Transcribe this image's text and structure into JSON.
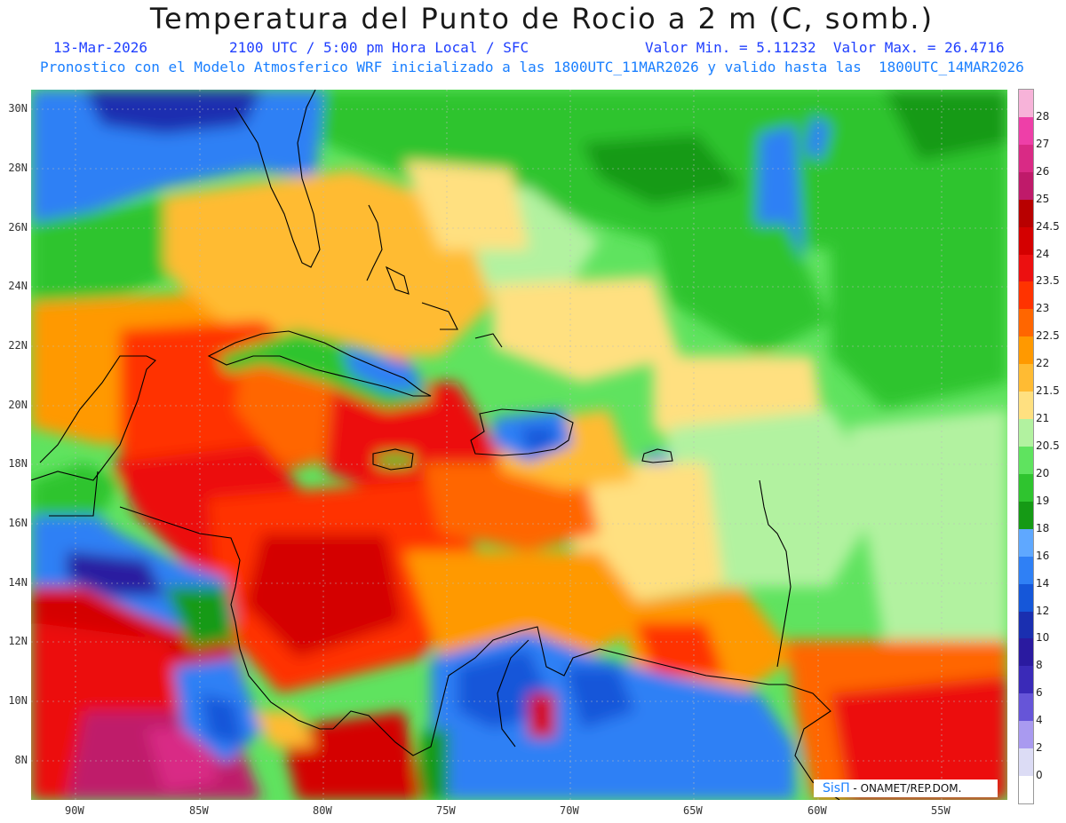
{
  "title": "Temperatura del Punto de Rocio a 2 m (C, somb.)",
  "subtitle": {
    "date": "13-Mar-2026",
    "time": "2100 UTC / 5:00 pm Hora Local / SFC",
    "minmax": "Valor Min. = 5.11232  Valor Max. = 26.4716",
    "model": "Pronostico con el Modelo Atmosferico WRF inicializado a las 1800UTC_11MAR2026 y valido hasta las  1800UTC_14MAR2026"
  },
  "axes": {
    "lat_labels": [
      "30N",
      "28N",
      "26N",
      "24N",
      "22N",
      "20N",
      "18N",
      "16N",
      "14N",
      "12N",
      "10N",
      "8N"
    ],
    "lon_labels": [
      "90W",
      "85W",
      "80W",
      "75W",
      "70W",
      "65W",
      "60W",
      "55W"
    ]
  },
  "colorbar": {
    "labels": [
      "28",
      "27",
      "26",
      "25",
      "24.5",
      "24",
      "23.5",
      "23",
      "22.5",
      "22",
      "21.5",
      "21",
      "20.5",
      "20",
      "19",
      "18",
      "16",
      "14",
      "12",
      "10",
      "8",
      "6",
      "4",
      "2",
      "0"
    ],
    "colors": [
      "#f7b3d9",
      "#ee3fa8",
      "#d92a85",
      "#bf1a6a",
      "#b80000",
      "#d40000",
      "#ec1010",
      "#ff3300",
      "#ff6600",
      "#ff9900",
      "#ffbb33",
      "#ffe080",
      "#b2f2a0",
      "#5fe35f",
      "#2fc42f",
      "#159a15",
      "#5fa8ff",
      "#2f80f5",
      "#1557d9",
      "#1a2fb0",
      "#2a1aa0",
      "#3a2ab8",
      "#6655d8",
      "#a99af0",
      "#dcdcf5",
      "#ffffff"
    ]
  },
  "credit": {
    "brand": "SisΠ",
    "text": " -  ONAMET/REP.DOM."
  }
}
